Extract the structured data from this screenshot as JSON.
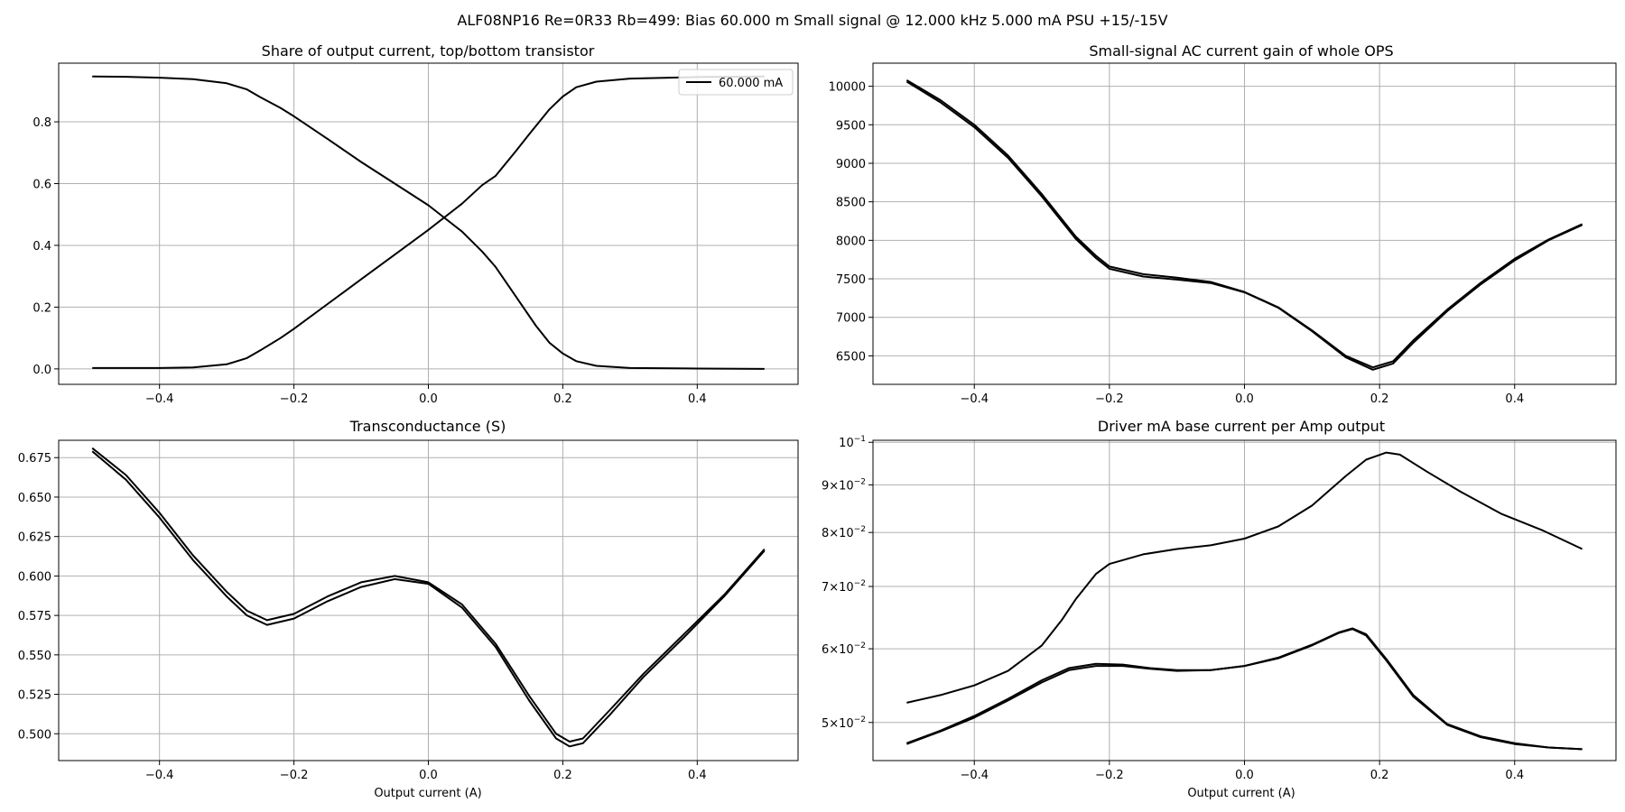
{
  "figure": {
    "suptitle": "ALF08NP16 Re=0R33 Rb=499: Bias 60.000 m Small signal @ 12.000 kHz 5.000 mA PSU +15/-15V"
  },
  "chart_data": [
    {
      "id": "share",
      "type": "line",
      "title": "Share of output current, top/bottom transistor",
      "xlabel": "",
      "ylabel": "",
      "xlim": [
        -0.55,
        0.55
      ],
      "ylim": [
        -0.05,
        0.99
      ],
      "xticks": [
        -0.4,
        -0.2,
        0.0,
        0.2,
        0.4
      ],
      "xtick_labels": [
        "−0.4",
        "−0.2",
        "0.0",
        "0.2",
        "0.4"
      ],
      "yticks": [
        0.0,
        0.2,
        0.4,
        0.6,
        0.8
      ],
      "ytick_labels": [
        "0.0",
        "0.2",
        "0.4",
        "0.6",
        "0.8"
      ],
      "yscale": "linear",
      "grid": true,
      "legend": {
        "entries": [
          "60.000 mA"
        ],
        "placement": "top-right"
      },
      "series": [
        {
          "name": "60.000 mA",
          "color": "#000000",
          "points": [
            [
              -0.5,
              0.947
            ],
            [
              -0.45,
              0.946
            ],
            [
              -0.4,
              0.943
            ],
            [
              -0.35,
              0.938
            ],
            [
              -0.3,
              0.925
            ],
            [
              -0.27,
              0.905
            ],
            [
              -0.25,
              0.88
            ],
            [
              -0.22,
              0.845
            ],
            [
              -0.2,
              0.818
            ],
            [
              -0.15,
              0.745
            ],
            [
              -0.1,
              0.67
            ],
            [
              -0.05,
              0.6
            ],
            [
              0.0,
              0.53
            ],
            [
              0.05,
              0.445
            ],
            [
              0.08,
              0.38
            ],
            [
              0.1,
              0.33
            ],
            [
              0.13,
              0.235
            ],
            [
              0.16,
              0.14
            ],
            [
              0.18,
              0.085
            ],
            [
              0.2,
              0.05
            ],
            [
              0.22,
              0.025
            ],
            [
              0.25,
              0.01
            ],
            [
              0.3,
              0.003
            ],
            [
              0.4,
              0.001
            ],
            [
              0.5,
              0.0
            ]
          ]
        },
        {
          "name": "",
          "color": "#000000",
          "points": [
            [
              -0.5,
              0.003
            ],
            [
              -0.4,
              0.003
            ],
            [
              -0.35,
              0.005
            ],
            [
              -0.3,
              0.015
            ],
            [
              -0.27,
              0.035
            ],
            [
              -0.25,
              0.06
            ],
            [
              -0.22,
              0.1
            ],
            [
              -0.2,
              0.13
            ],
            [
              -0.15,
              0.21
            ],
            [
              -0.1,
              0.29
            ],
            [
              -0.05,
              0.37
            ],
            [
              0.0,
              0.45
            ],
            [
              0.05,
              0.535
            ],
            [
              0.08,
              0.595
            ],
            [
              0.1,
              0.625
            ],
            [
              0.13,
              0.705
            ],
            [
              0.15,
              0.76
            ],
            [
              0.18,
              0.84
            ],
            [
              0.2,
              0.882
            ],
            [
              0.22,
              0.912
            ],
            [
              0.25,
              0.93
            ],
            [
              0.3,
              0.94
            ],
            [
              0.4,
              0.945
            ],
            [
              0.5,
              0.947
            ]
          ]
        }
      ]
    },
    {
      "id": "gain",
      "type": "line",
      "title": "Small-signal AC current gain of whole OPS",
      "xlabel": "",
      "ylabel": "",
      "xlim": [
        -0.55,
        0.55
      ],
      "ylim": [
        6130,
        10300
      ],
      "xticks": [
        -0.4,
        -0.2,
        0.0,
        0.2,
        0.4
      ],
      "xtick_labels": [
        "−0.4",
        "−0.2",
        "0.0",
        "0.2",
        "0.4"
      ],
      "yticks": [
        6500,
        7000,
        7500,
        8000,
        8500,
        9000,
        9500,
        10000
      ],
      "ytick_labels": [
        "6500",
        "7000",
        "7500",
        "8000",
        "8500",
        "9000",
        "9500",
        "10000"
      ],
      "yscale": "linear",
      "grid": true,
      "series": [
        {
          "name": "",
          "color": "#000000",
          "points": [
            [
              -0.5,
              10080
            ],
            [
              -0.45,
              9820
            ],
            [
              -0.4,
              9500
            ],
            [
              -0.35,
              9100
            ],
            [
              -0.3,
              8600
            ],
            [
              -0.25,
              8050
            ],
            [
              -0.22,
              7800
            ],
            [
              -0.2,
              7660
            ],
            [
              -0.15,
              7560
            ],
            [
              -0.1,
              7515
            ],
            [
              -0.05,
              7460
            ],
            [
              0.0,
              7330
            ],
            [
              0.05,
              7130
            ],
            [
              0.1,
              6830
            ],
            [
              0.15,
              6500
            ],
            [
              0.19,
              6350
            ],
            [
              0.22,
              6430
            ],
            [
              0.25,
              6700
            ],
            [
              0.3,
              7100
            ],
            [
              0.35,
              7450
            ],
            [
              0.4,
              7760
            ],
            [
              0.45,
              8010
            ],
            [
              0.5,
              8210
            ]
          ]
        },
        {
          "name": "",
          "color": "#000000",
          "points": [
            [
              -0.5,
              10060
            ],
            [
              -0.45,
              9790
            ],
            [
              -0.4,
              9470
            ],
            [
              -0.35,
              9070
            ],
            [
              -0.3,
              8570
            ],
            [
              -0.25,
              8020
            ],
            [
              -0.22,
              7770
            ],
            [
              -0.2,
              7630
            ],
            [
              -0.15,
              7530
            ],
            [
              -0.1,
              7490
            ],
            [
              -0.05,
              7445
            ],
            [
              0.0,
              7325
            ],
            [
              0.05,
              7125
            ],
            [
              0.1,
              6820
            ],
            [
              0.15,
              6480
            ],
            [
              0.19,
              6320
            ],
            [
              0.22,
              6400
            ],
            [
              0.25,
              6670
            ],
            [
              0.3,
              7080
            ],
            [
              0.35,
              7430
            ],
            [
              0.4,
              7740
            ],
            [
              0.45,
              8000
            ],
            [
              0.5,
              8200
            ]
          ]
        }
      ]
    },
    {
      "id": "gm",
      "type": "line",
      "title": "Transconductance (S)",
      "xlabel": "Output current (A)",
      "ylabel": "",
      "xlim": [
        -0.55,
        0.55
      ],
      "ylim": [
        0.483,
        0.686
      ],
      "xticks": [
        -0.4,
        -0.2,
        0.0,
        0.2,
        0.4
      ],
      "xtick_labels": [
        "−0.4",
        "−0.2",
        "0.0",
        "0.2",
        "0.4"
      ],
      "yticks": [
        0.5,
        0.525,
        0.55,
        0.575,
        0.6,
        0.625,
        0.65,
        0.675
      ],
      "ytick_labels": [
        "0.500",
        "0.525",
        "0.550",
        "0.575",
        "0.600",
        "0.625",
        "0.650",
        "0.675"
      ],
      "yscale": "linear",
      "grid": true,
      "series": [
        {
          "name": "",
          "color": "#000000",
          "points": [
            [
              -0.5,
              0.681
            ],
            [
              -0.45,
              0.664
            ],
            [
              -0.4,
              0.64
            ],
            [
              -0.35,
              0.613
            ],
            [
              -0.3,
              0.59
            ],
            [
              -0.27,
              0.578
            ],
            [
              -0.24,
              0.572
            ],
            [
              -0.2,
              0.576
            ],
            [
              -0.15,
              0.587
            ],
            [
              -0.1,
              0.596
            ],
            [
              -0.05,
              0.6
            ],
            [
              0.0,
              0.596
            ],
            [
              0.05,
              0.582
            ],
            [
              0.1,
              0.557
            ],
            [
              0.15,
              0.524
            ],
            [
              0.19,
              0.5
            ],
            [
              0.21,
              0.495
            ],
            [
              0.23,
              0.497
            ],
            [
              0.27,
              0.515
            ],
            [
              0.32,
              0.538
            ],
            [
              0.38,
              0.563
            ],
            [
              0.44,
              0.588
            ],
            [
              0.5,
              0.617
            ]
          ]
        },
        {
          "name": "",
          "color": "#000000",
          "points": [
            [
              -0.5,
              0.679
            ],
            [
              -0.45,
              0.661
            ],
            [
              -0.4,
              0.637
            ],
            [
              -0.35,
              0.61
            ],
            [
              -0.3,
              0.587
            ],
            [
              -0.27,
              0.575
            ],
            [
              -0.24,
              0.569
            ],
            [
              -0.2,
              0.573
            ],
            [
              -0.15,
              0.584
            ],
            [
              -0.1,
              0.593
            ],
            [
              -0.05,
              0.598
            ],
            [
              0.0,
              0.595
            ],
            [
              0.05,
              0.58
            ],
            [
              0.1,
              0.555
            ],
            [
              0.15,
              0.521
            ],
            [
              0.19,
              0.497
            ],
            [
              0.21,
              0.492
            ],
            [
              0.23,
              0.494
            ],
            [
              0.27,
              0.512
            ],
            [
              0.32,
              0.536
            ],
            [
              0.38,
              0.561
            ],
            [
              0.44,
              0.587
            ],
            [
              0.5,
              0.616
            ]
          ]
        }
      ]
    },
    {
      "id": "drive",
      "type": "line",
      "title": "Driver mA base current per Amp output",
      "xlabel": "Output current (A)",
      "ylabel": "",
      "xlim": [
        -0.55,
        0.55
      ],
      "ylim": [
        0.0455,
        0.1005
      ],
      "xticks": [
        -0.4,
        -0.2,
        0.0,
        0.2,
        0.4
      ],
      "xtick_labels": [
        "−0.4",
        "−0.2",
        "0.0",
        "0.2",
        "0.4"
      ],
      "yticks": [
        0.05,
        0.06,
        0.07,
        0.08,
        0.09,
        0.1
      ],
      "ytick_labels": [
        {
          "base": "5×10",
          "exp": "−2"
        },
        {
          "base": "6×10",
          "exp": "−2"
        },
        {
          "base": "7×10",
          "exp": "−2"
        },
        {
          "base": "8×10",
          "exp": "−2"
        },
        {
          "base": "9×10",
          "exp": "−2"
        },
        {
          "base": "10",
          "exp": "−1"
        }
      ],
      "yscale": "log",
      "grid": true,
      "series": [
        {
          "name": "",
          "color": "#000000",
          "points": [
            [
              -0.5,
              0.0525
            ],
            [
              -0.45,
              0.0535
            ],
            [
              -0.4,
              0.0548
            ],
            [
              -0.35,
              0.0568
            ],
            [
              -0.3,
              0.0605
            ],
            [
              -0.27,
              0.0645
            ],
            [
              -0.25,
              0.0678
            ],
            [
              -0.22,
              0.0722
            ],
            [
              -0.2,
              0.074
            ],
            [
              -0.15,
              0.0758
            ],
            [
              -0.1,
              0.0768
            ],
            [
              -0.05,
              0.0775
            ],
            [
              0.0,
              0.0788
            ],
            [
              0.05,
              0.0812
            ],
            [
              0.1,
              0.0855
            ],
            [
              0.15,
              0.092
            ],
            [
              0.18,
              0.0958
            ],
            [
              0.21,
              0.0975
            ],
            [
              0.23,
              0.097
            ],
            [
              0.27,
              0.093
            ],
            [
              0.32,
              0.0885
            ],
            [
              0.38,
              0.0838
            ],
            [
              0.44,
              0.0805
            ],
            [
              0.5,
              0.0768
            ]
          ]
        },
        {
          "name": "",
          "color": "#000000",
          "points": [
            [
              -0.5,
              0.0475
            ],
            [
              -0.45,
              0.049
            ],
            [
              -0.4,
              0.0508
            ],
            [
              -0.35,
              0.053
            ],
            [
              -0.3,
              0.0555
            ],
            [
              -0.26,
              0.0572
            ],
            [
              -0.22,
              0.0578
            ],
            [
              -0.18,
              0.0577
            ],
            [
              -0.14,
              0.0572
            ],
            [
              -0.1,
              0.0569
            ],
            [
              -0.05,
              0.0569
            ],
            [
              0.0,
              0.0575
            ],
            [
              0.05,
              0.0587
            ],
            [
              0.1,
              0.0606
            ],
            [
              0.14,
              0.0625
            ],
            [
              0.16,
              0.0631
            ],
            [
              0.18,
              0.0622
            ],
            [
              0.21,
              0.0585
            ],
            [
              0.25,
              0.0535
            ],
            [
              0.3,
              0.0498
            ],
            [
              0.35,
              0.0483
            ],
            [
              0.4,
              0.0475
            ],
            [
              0.45,
              0.047
            ],
            [
              0.5,
              0.0468
            ]
          ]
        },
        {
          "name": "",
          "color": "#000000",
          "points": [
            [
              -0.5,
              0.0474
            ],
            [
              -0.45,
              0.0489
            ],
            [
              -0.4,
              0.0506
            ],
            [
              -0.35,
              0.0528
            ],
            [
              -0.3,
              0.0552
            ],
            [
              -0.26,
              0.0569
            ],
            [
              -0.22,
              0.0575
            ],
            [
              -0.18,
              0.0575
            ],
            [
              -0.14,
              0.0571
            ],
            [
              -0.1,
              0.0568
            ],
            [
              -0.05,
              0.0569
            ],
            [
              0.0,
              0.0575
            ],
            [
              0.05,
              0.0586
            ],
            [
              0.1,
              0.0605
            ],
            [
              0.14,
              0.0624
            ],
            [
              0.16,
              0.063
            ],
            [
              0.18,
              0.062
            ],
            [
              0.21,
              0.0583
            ],
            [
              0.25,
              0.0533
            ],
            [
              0.3,
              0.0497
            ],
            [
              0.35,
              0.0482
            ],
            [
              0.4,
              0.0474
            ],
            [
              0.45,
              0.047
            ],
            [
              0.5,
              0.0468
            ]
          ]
        }
      ]
    }
  ]
}
